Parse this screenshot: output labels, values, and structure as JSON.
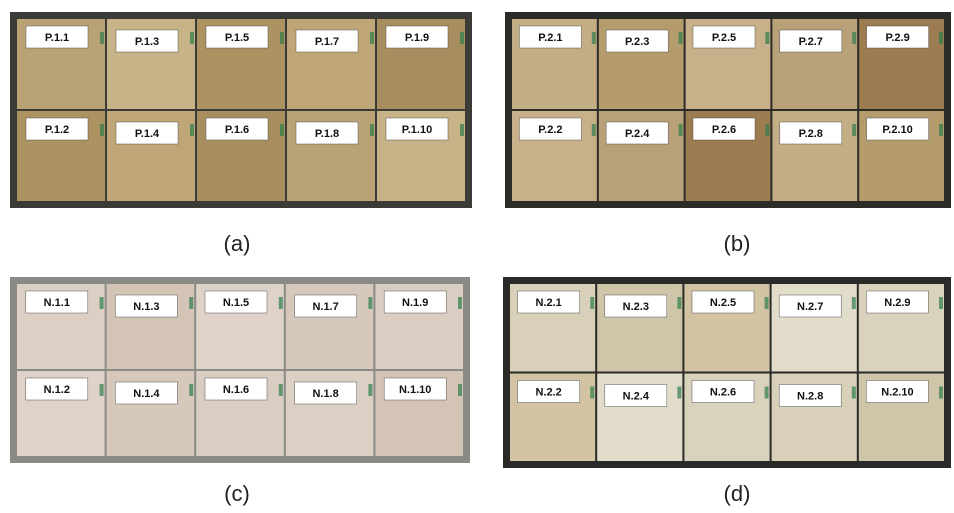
{
  "panels": [
    {
      "caption": "(a)",
      "rows": [
        [
          "P.1.1",
          "P.1.3",
          "P.1.5",
          "P.1.7",
          "P.1.9"
        ],
        [
          "P.1.2",
          "P.1.4",
          "P.1.6",
          "P.1.8",
          "P.1.10"
        ]
      ]
    },
    {
      "caption": "(b)",
      "rows": [
        [
          "P.2.1",
          "P.2.3",
          "P.2.5",
          "P.2.7",
          "P.2.9"
        ],
        [
          "P.2.2",
          "P.2.4",
          "P.2.6",
          "P.2.8",
          "P.2.10"
        ]
      ]
    },
    {
      "caption": "(c)",
      "rows": [
        [
          "N.1.1",
          "N.1.3",
          "N.1.5",
          "N.1.7",
          "N.1.9"
        ],
        [
          "N.1.2",
          "N.1.4",
          "N.1.6",
          "N.1.8",
          "N.1.10"
        ]
      ]
    },
    {
      "caption": "(d)",
      "rows": [
        [
          "N.2.1",
          "N.2.3",
          "N.2.5",
          "N.2.7",
          "N.2.9"
        ],
        [
          "N.2.2",
          "N.2.4",
          "N.2.6",
          "N.2.8",
          "N.2.10"
        ]
      ]
    }
  ]
}
